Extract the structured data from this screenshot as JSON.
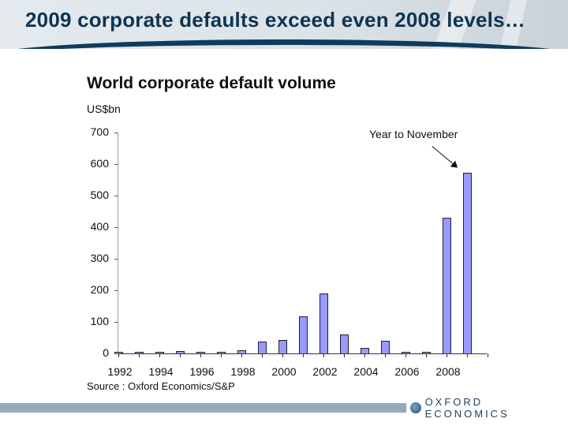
{
  "header": {
    "title": "2009 corporate defaults exceed even 2008 levels…"
  },
  "chart": {
    "title": "World corporate default volume",
    "unit": "US$bn",
    "annotation": "Year to November",
    "source": "Source : Oxford Economics/S&P",
    "y_ticks": [
      "700",
      "600",
      "500",
      "400",
      "300",
      "200",
      "100",
      "0"
    ],
    "x_labels": [
      "1992",
      "1994",
      "1996",
      "1998",
      "2000",
      "2002",
      "2004",
      "2006",
      "2008"
    ]
  },
  "footer": {
    "logo": "OXFORD ECONOMICS"
  },
  "colors": {
    "bar": "#9999ff",
    "title": "#0f3452",
    "footer_bar": "#94aabb"
  },
  "chart_data": {
    "type": "bar",
    "title": "World corporate default volume",
    "xlabel": "",
    "ylabel": "US$bn",
    "ylim": [
      0,
      700
    ],
    "categories": [
      "1992",
      "1993",
      "1994",
      "1995",
      "1996",
      "1997",
      "1998",
      "1999",
      "2000",
      "2001",
      "2002",
      "2003",
      "2004",
      "2005",
      "2006",
      "2007",
      "2008",
      "2009"
    ],
    "values": [
      3,
      1,
      1,
      8,
      2,
      4,
      10,
      37,
      43,
      117,
      190,
      60,
      18,
      40,
      5,
      5,
      430,
      572
    ],
    "annotations": [
      {
        "text": "Year to November",
        "target": "2009"
      }
    ],
    "source": "Source : Oxford Economics/S&P",
    "grid": false,
    "legend": null
  }
}
